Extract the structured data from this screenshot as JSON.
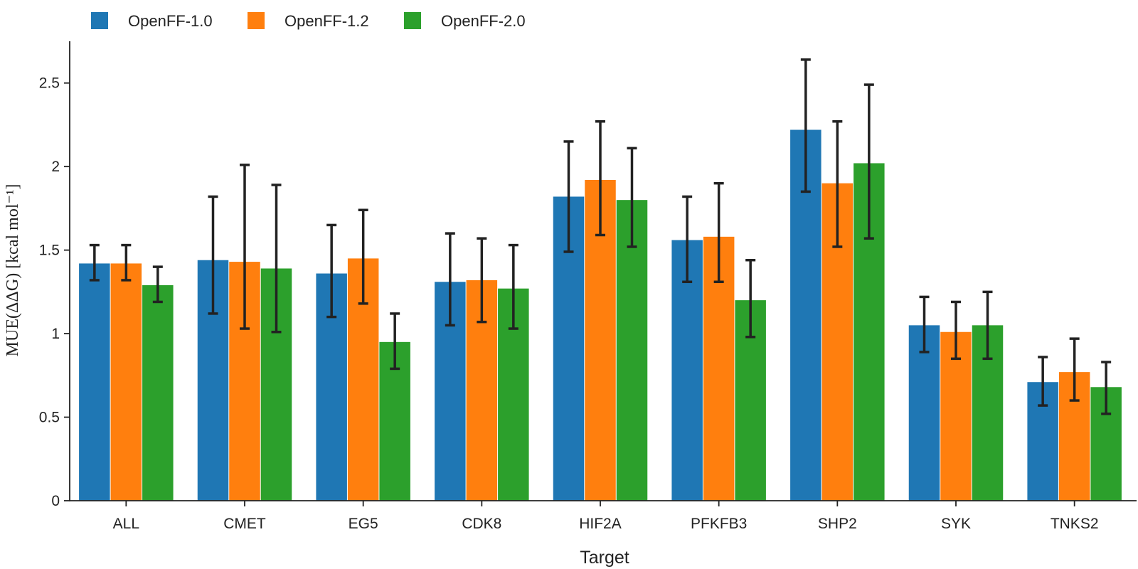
{
  "chart_data": {
    "type": "bar",
    "title": "",
    "xlabel": "Target",
    "ylabel": "MUE(ΔΔG) [kcal mol⁻¹]",
    "ylim": [
      0,
      2.75
    ],
    "yticks": [
      0,
      0.5,
      1,
      1.5,
      2,
      2.5
    ],
    "ytick_labels": [
      "0",
      "0.5",
      "1",
      "1.5",
      "2",
      "2.5"
    ],
    "legend_position": "top-left",
    "grid": false,
    "categories": [
      "ALL",
      "CMET",
      "EG5",
      "CDK8",
      "HIF2A",
      "PFKFB3",
      "SHP2",
      "SYK",
      "TNKS2"
    ],
    "series": [
      {
        "name": "OpenFF-1.0",
        "color": "#1f77b4",
        "values": [
          1.42,
          1.44,
          1.36,
          1.31,
          1.82,
          1.56,
          2.22,
          1.05,
          0.71
        ],
        "err_low": [
          1.32,
          1.12,
          1.1,
          1.05,
          1.49,
          1.31,
          1.85,
          0.89,
          0.57
        ],
        "err_high": [
          1.53,
          1.82,
          1.65,
          1.6,
          2.15,
          1.82,
          2.64,
          1.22,
          0.86
        ]
      },
      {
        "name": "OpenFF-1.2",
        "color": "#ff7f0e",
        "values": [
          1.42,
          1.43,
          1.45,
          1.32,
          1.92,
          1.58,
          1.9,
          1.01,
          0.77
        ],
        "err_low": [
          1.32,
          1.03,
          1.18,
          1.07,
          1.59,
          1.31,
          1.52,
          0.85,
          0.6
        ],
        "err_high": [
          1.53,
          2.01,
          1.74,
          1.57,
          2.27,
          1.9,
          2.27,
          1.19,
          0.97
        ]
      },
      {
        "name": "OpenFF-2.0",
        "color": "#2ca02c",
        "values": [
          1.29,
          1.39,
          0.95,
          1.27,
          1.8,
          1.2,
          2.02,
          1.05,
          0.68
        ],
        "err_low": [
          1.19,
          1.01,
          0.79,
          1.03,
          1.52,
          0.98,
          1.57,
          0.85,
          0.52
        ],
        "err_high": [
          1.4,
          1.89,
          1.12,
          1.53,
          2.11,
          1.44,
          2.49,
          1.25,
          0.83
        ]
      }
    ]
  }
}
